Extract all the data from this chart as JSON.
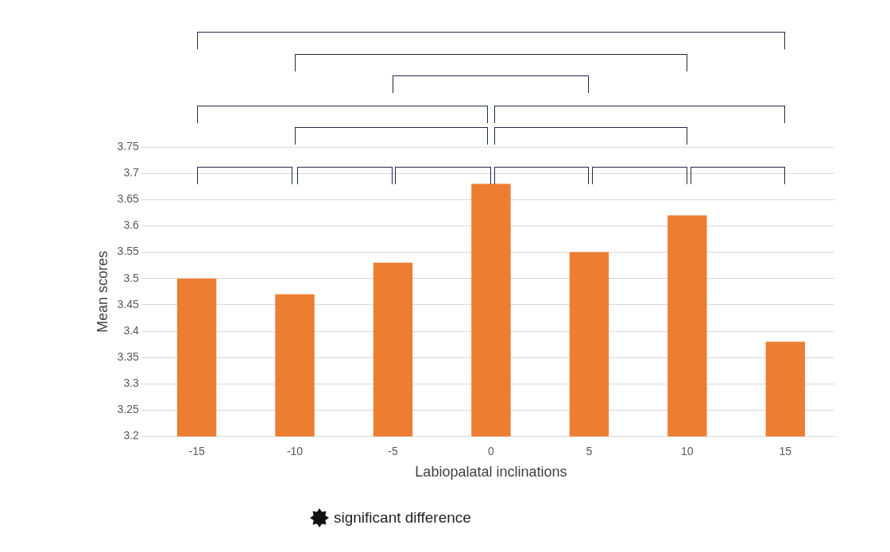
{
  "chart_data": {
    "type": "bar",
    "xlabel": "Labiopalatal inclinations",
    "ylabel": "Mean scores",
    "categories": [
      "-15",
      "-10",
      "-5",
      "0",
      "5",
      "10",
      "15"
    ],
    "values": [
      3.5,
      3.47,
      3.53,
      3.68,
      3.55,
      3.62,
      3.38
    ],
    "color": "#ed7d31",
    "ylim": [
      3.2,
      3.75
    ],
    "yticks": [
      3.2,
      3.25,
      3.3,
      3.35,
      3.4,
      3.45,
      3.5,
      3.55,
      3.6,
      3.65,
      3.7,
      3.75
    ],
    "grid": "y",
    "legend": false,
    "annotations": [
      "significant difference"
    ]
  }
}
